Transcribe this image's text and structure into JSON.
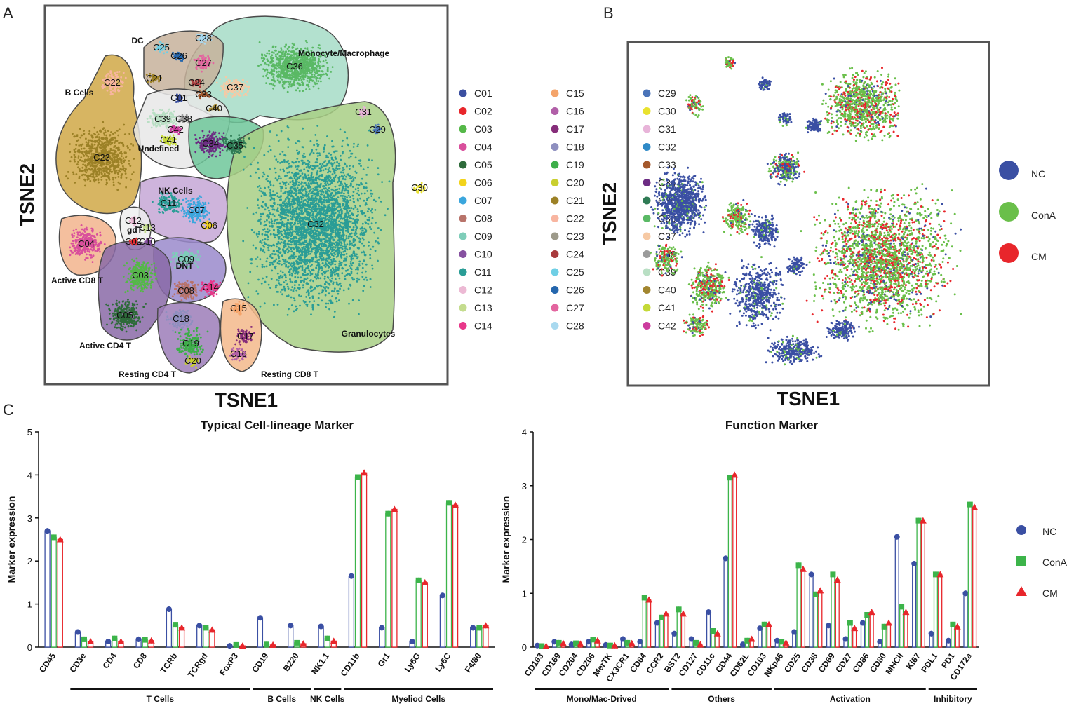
{
  "panels": {
    "a": "A",
    "b": "B",
    "c": "C"
  },
  "colors": {
    "nc": "#3a4fa3",
    "cona": "#3cb44a",
    "cm": "#e8262b",
    "granulocytes_fill": "#a9cf82",
    "mono_fill": "#9fd9c4"
  },
  "tsne_a": {
    "xlabel": "TSNE1",
    "ylabel": "TSNE2",
    "groups": [
      {
        "label": "Monocyte/Macrophage",
        "clusters": [
          "C36",
          "C37",
          "C33",
          "C40"
        ]
      },
      {
        "label": "DC",
        "clusters": [
          "C25",
          "C28",
          "C26",
          "C27",
          "C21",
          "C24"
        ]
      },
      {
        "label": "B Cells",
        "clusters": [
          "C22",
          "C23"
        ]
      },
      {
        "label": "Undefined",
        "clusters": [
          "C01",
          "C39",
          "C38",
          "C42",
          "C41",
          "C34",
          "C35"
        ]
      },
      {
        "label": "Granulocytes",
        "clusters": [
          "C32",
          "C31",
          "C29",
          "C30"
        ]
      },
      {
        "label": "NK Cells",
        "clusters": [
          "C11",
          "C07",
          "C06"
        ]
      },
      {
        "label": "gdT",
        "clusters": [
          "C12",
          "C13",
          "C02",
          "C10"
        ]
      },
      {
        "label": "Active CD8 T",
        "clusters": [
          "C04"
        ]
      },
      {
        "label": "DNT",
        "clusters": [
          "C09",
          "C08",
          "C14"
        ]
      },
      {
        "label": "Active CD4 T",
        "clusters": [
          "C03",
          "C05"
        ]
      },
      {
        "label": "Resting CD4 T",
        "clusters": [
          "C18",
          "C19",
          "C20"
        ]
      },
      {
        "label": "Resting CD8 T",
        "clusters": [
          "C15",
          "C17",
          "C16"
        ]
      }
    ],
    "legend": [
      {
        "id": "C01",
        "color": "#3b4fa0"
      },
      {
        "id": "C02",
        "color": "#e8262b"
      },
      {
        "id": "C03",
        "color": "#55b848"
      },
      {
        "id": "C04",
        "color": "#d94f9c"
      },
      {
        "id": "C05",
        "color": "#2e6b3a"
      },
      {
        "id": "C06",
        "color": "#f2d31b"
      },
      {
        "id": "C07",
        "color": "#3aa6dd"
      },
      {
        "id": "C08",
        "color": "#b8736a"
      },
      {
        "id": "C09",
        "color": "#7ecdb9"
      },
      {
        "id": "C10",
        "color": "#8651a0"
      },
      {
        "id": "C11",
        "color": "#2a9d96"
      },
      {
        "id": "C12",
        "color": "#ecb9d4"
      },
      {
        "id": "C13",
        "color": "#c4dc8e"
      },
      {
        "id": "C14",
        "color": "#e8388a"
      },
      {
        "id": "C15",
        "color": "#f4a46a"
      },
      {
        "id": "C16",
        "color": "#b15fa8"
      },
      {
        "id": "C17",
        "color": "#862d7a"
      },
      {
        "id": "C18",
        "color": "#8e8fbf"
      },
      {
        "id": "C19",
        "color": "#3dae49"
      },
      {
        "id": "C20",
        "color": "#c9cf2f"
      },
      {
        "id": "C21",
        "color": "#9c8126"
      },
      {
        "id": "C22",
        "color": "#f8b5a0"
      },
      {
        "id": "C23",
        "color": "#9d9a8a"
      },
      {
        "id": "C24",
        "color": "#a83a3c"
      },
      {
        "id": "C25",
        "color": "#6fcfe5"
      },
      {
        "id": "C26",
        "color": "#2466ad"
      },
      {
        "id": "C27",
        "color": "#e3659f"
      },
      {
        "id": "C28",
        "color": "#a9d9ef"
      },
      {
        "id": "C29",
        "color": "#4a73b8"
      },
      {
        "id": "C30",
        "color": "#e9e22e"
      },
      {
        "id": "C31",
        "color": "#e8b4d9"
      },
      {
        "id": "C32",
        "color": "#2f8ac7"
      },
      {
        "id": "C33",
        "color": "#a4582c"
      },
      {
        "id": "C34",
        "color": "#6c2c83"
      },
      {
        "id": "C35",
        "color": "#2f7b55"
      },
      {
        "id": "C36",
        "color": "#5ab965"
      },
      {
        "id": "C37",
        "color": "#f6c9a4"
      },
      {
        "id": "C38",
        "color": "#9b9b9b"
      },
      {
        "id": "C39",
        "color": "#b9dfc4"
      },
      {
        "id": "C40",
        "color": "#a2862f"
      },
      {
        "id": "C41",
        "color": "#c4d937"
      },
      {
        "id": "C42",
        "color": "#cc3c9e"
      }
    ]
  },
  "tsne_b": {
    "xlabel": "TSNE1",
    "ylabel": "TSNE2",
    "legend": [
      {
        "name": "NC",
        "color": "#3a4fa3"
      },
      {
        "name": "ConA",
        "color": "#6abf4a"
      },
      {
        "name": "CM",
        "color": "#e8262b"
      }
    ]
  },
  "chart_data": [
    {
      "type": "bar",
      "title": "Typical Cell-lineage Marker",
      "xlabel": "",
      "ylabel": "Marker expression",
      "ylim": [
        0,
        5
      ],
      "yticks": [
        0,
        1,
        2,
        3,
        4,
        5
      ],
      "categories": [
        "CD45",
        "CD3e",
        "CD4",
        "CD8",
        "TCRb",
        "TCRgd",
        "FoxP3",
        "CD19",
        "B220",
        "NK1.1",
        "CD11b",
        "Gr1",
        "Ly6G",
        "Ly6C",
        "F4/80"
      ],
      "series": [
        {
          "name": "NC",
          "values": [
            2.7,
            0.35,
            0.13,
            0.18,
            0.88,
            0.5,
            0.03,
            0.68,
            0.5,
            0.48,
            1.65,
            0.45,
            0.13,
            1.2,
            0.45
          ]
        },
        {
          "name": "ConA",
          "values": [
            2.55,
            0.18,
            0.2,
            0.17,
            0.52,
            0.45,
            0.05,
            0.06,
            0.1,
            0.2,
            3.95,
            3.1,
            1.55,
            3.35,
            0.45
          ]
        },
        {
          "name": "CM",
          "values": [
            2.5,
            0.13,
            0.13,
            0.15,
            0.45,
            0.4,
            0.03,
            0.05,
            0.08,
            0.14,
            4.05,
            3.2,
            1.5,
            3.3,
            0.5
          ]
        }
      ],
      "groups": [
        {
          "label": "T Cells",
          "from": "CD3e",
          "to": "FoxP3"
        },
        {
          "label": "B Cells",
          "from": "CD19",
          "to": "B220"
        },
        {
          "label": "NK Cells",
          "from": "NK1.1",
          "to": "NK1.1"
        },
        {
          "label": "Myeliod Cells",
          "from": "CD11b",
          "to": "F4/80"
        }
      ]
    },
    {
      "type": "bar",
      "title": "Function Marker",
      "xlabel": "",
      "ylabel": "Marker expression",
      "ylim": [
        0,
        4
      ],
      "yticks": [
        0,
        1,
        2,
        3,
        4
      ],
      "categories": [
        "CD163",
        "CD169",
        "CD204",
        "CD206",
        "MerTK",
        "CX3CR1",
        "CD64",
        "CCR2",
        "BST2",
        "CD127",
        "CD11c",
        "CD44",
        "CD62L",
        "CD103",
        "NKp46",
        "CD25",
        "CD38",
        "CD69",
        "CD27",
        "CD86",
        "CD80",
        "MHCII",
        "Ki67",
        "PDL1",
        "PD1",
        "CD172a"
      ],
      "series": [
        {
          "name": "NC",
          "values": [
            0.03,
            0.1,
            0.05,
            0.1,
            0.04,
            0.15,
            0.1,
            0.45,
            0.25,
            0.15,
            0.65,
            1.65,
            0.05,
            0.35,
            0.12,
            0.28,
            1.35,
            0.4,
            0.15,
            0.45,
            0.1,
            2.05,
            1.55,
            0.25,
            0.12,
            1.0
          ]
        },
        {
          "name": "ConA",
          "values": [
            0.02,
            0.08,
            0.07,
            0.14,
            0.03,
            0.08,
            0.92,
            0.55,
            0.7,
            0.08,
            0.3,
            3.15,
            0.12,
            0.42,
            0.1,
            1.52,
            0.98,
            1.35,
            0.45,
            0.6,
            0.38,
            0.75,
            2.35,
            1.35,
            0.42,
            2.65
          ]
        },
        {
          "name": "CM",
          "values": [
            0.02,
            0.07,
            0.06,
            0.12,
            0.03,
            0.07,
            0.88,
            0.62,
            0.62,
            0.05,
            0.25,
            3.2,
            0.15,
            0.42,
            0.08,
            1.45,
            1.05,
            1.25,
            0.35,
            0.65,
            0.45,
            0.65,
            2.35,
            1.35,
            0.38,
            2.6
          ]
        }
      ],
      "groups": [
        {
          "label": "Mono/Mac-Drived",
          "from": "CD163",
          "to": "CCR2"
        },
        {
          "label": "Others",
          "from": "BST2",
          "to": "CD103"
        },
        {
          "label": "Activation",
          "from": "NKp46",
          "to": "Ki67"
        },
        {
          "label": "Inhibitory",
          "from": "PDL1",
          "to": "CD172a"
        }
      ],
      "legend": [
        "NC",
        "ConA",
        "CM"
      ]
    }
  ]
}
